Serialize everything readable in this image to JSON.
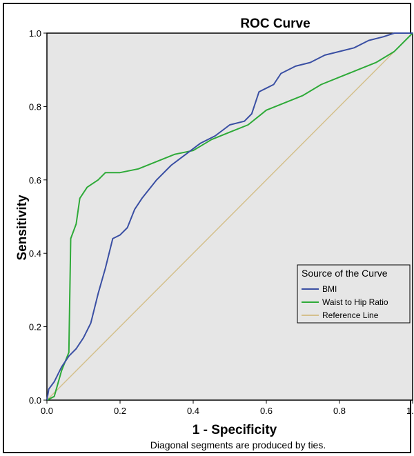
{
  "chart_data": {
    "type": "line",
    "title": "ROC Curve",
    "xlabel": "1 - Specificity",
    "ylabel": "Sensitivity",
    "footnote": "Diagonal segments are produced by ties.",
    "xlim": [
      0,
      1
    ],
    "ylim": [
      0,
      1
    ],
    "xticks": [
      "0.0",
      "0.2",
      "0.4",
      "0.6",
      "0.8",
      "1.0"
    ],
    "yticks": [
      "0.0",
      "0.2",
      "0.4",
      "0.6",
      "0.8",
      "1.0"
    ],
    "grid": false,
    "plot_background": "#e6e6e6",
    "legend": {
      "title": "Source of the Curve",
      "placement": "lower-right"
    },
    "series": [
      {
        "name": "BMI",
        "color": "#3a4fa3",
        "points": [
          [
            0,
            0
          ],
          [
            0.005,
            0.03
          ],
          [
            0.02,
            0.05
          ],
          [
            0.04,
            0.09
          ],
          [
            0.06,
            0.12
          ],
          [
            0.08,
            0.14
          ],
          [
            0.1,
            0.17
          ],
          [
            0.12,
            0.21
          ],
          [
            0.14,
            0.29
          ],
          [
            0.16,
            0.36
          ],
          [
            0.18,
            0.44
          ],
          [
            0.2,
            0.45
          ],
          [
            0.22,
            0.47
          ],
          [
            0.24,
            0.52
          ],
          [
            0.26,
            0.55
          ],
          [
            0.3,
            0.6
          ],
          [
            0.34,
            0.64
          ],
          [
            0.38,
            0.67
          ],
          [
            0.42,
            0.7
          ],
          [
            0.46,
            0.72
          ],
          [
            0.5,
            0.75
          ],
          [
            0.54,
            0.76
          ],
          [
            0.56,
            0.78
          ],
          [
            0.58,
            0.84
          ],
          [
            0.6,
            0.85
          ],
          [
            0.62,
            0.86
          ],
          [
            0.64,
            0.89
          ],
          [
            0.68,
            0.91
          ],
          [
            0.72,
            0.92
          ],
          [
            0.76,
            0.94
          ],
          [
            0.8,
            0.95
          ],
          [
            0.84,
            0.96
          ],
          [
            0.88,
            0.98
          ],
          [
            0.92,
            0.99
          ],
          [
            0.95,
            1.0
          ],
          [
            1.0,
            1.0
          ]
        ]
      },
      {
        "name": "Waist to Hip Ratio",
        "color": "#2eaa38",
        "points": [
          [
            0,
            0
          ],
          [
            0.02,
            0.01
          ],
          [
            0.04,
            0.08
          ],
          [
            0.06,
            0.13
          ],
          [
            0.065,
            0.44
          ],
          [
            0.08,
            0.48
          ],
          [
            0.09,
            0.55
          ],
          [
            0.11,
            0.58
          ],
          [
            0.14,
            0.6
          ],
          [
            0.16,
            0.62
          ],
          [
            0.2,
            0.62
          ],
          [
            0.25,
            0.63
          ],
          [
            0.3,
            0.65
          ],
          [
            0.35,
            0.67
          ],
          [
            0.4,
            0.68
          ],
          [
            0.45,
            0.71
          ],
          [
            0.5,
            0.73
          ],
          [
            0.55,
            0.75
          ],
          [
            0.6,
            0.79
          ],
          [
            0.65,
            0.81
          ],
          [
            0.7,
            0.83
          ],
          [
            0.75,
            0.86
          ],
          [
            0.8,
            0.88
          ],
          [
            0.85,
            0.9
          ],
          [
            0.9,
            0.92
          ],
          [
            0.95,
            0.95
          ],
          [
            1.0,
            1.0
          ]
        ]
      },
      {
        "name": "Reference Line",
        "color": "#d4c08c",
        "points": [
          [
            0,
            0
          ],
          [
            1,
            1
          ]
        ]
      }
    ]
  }
}
